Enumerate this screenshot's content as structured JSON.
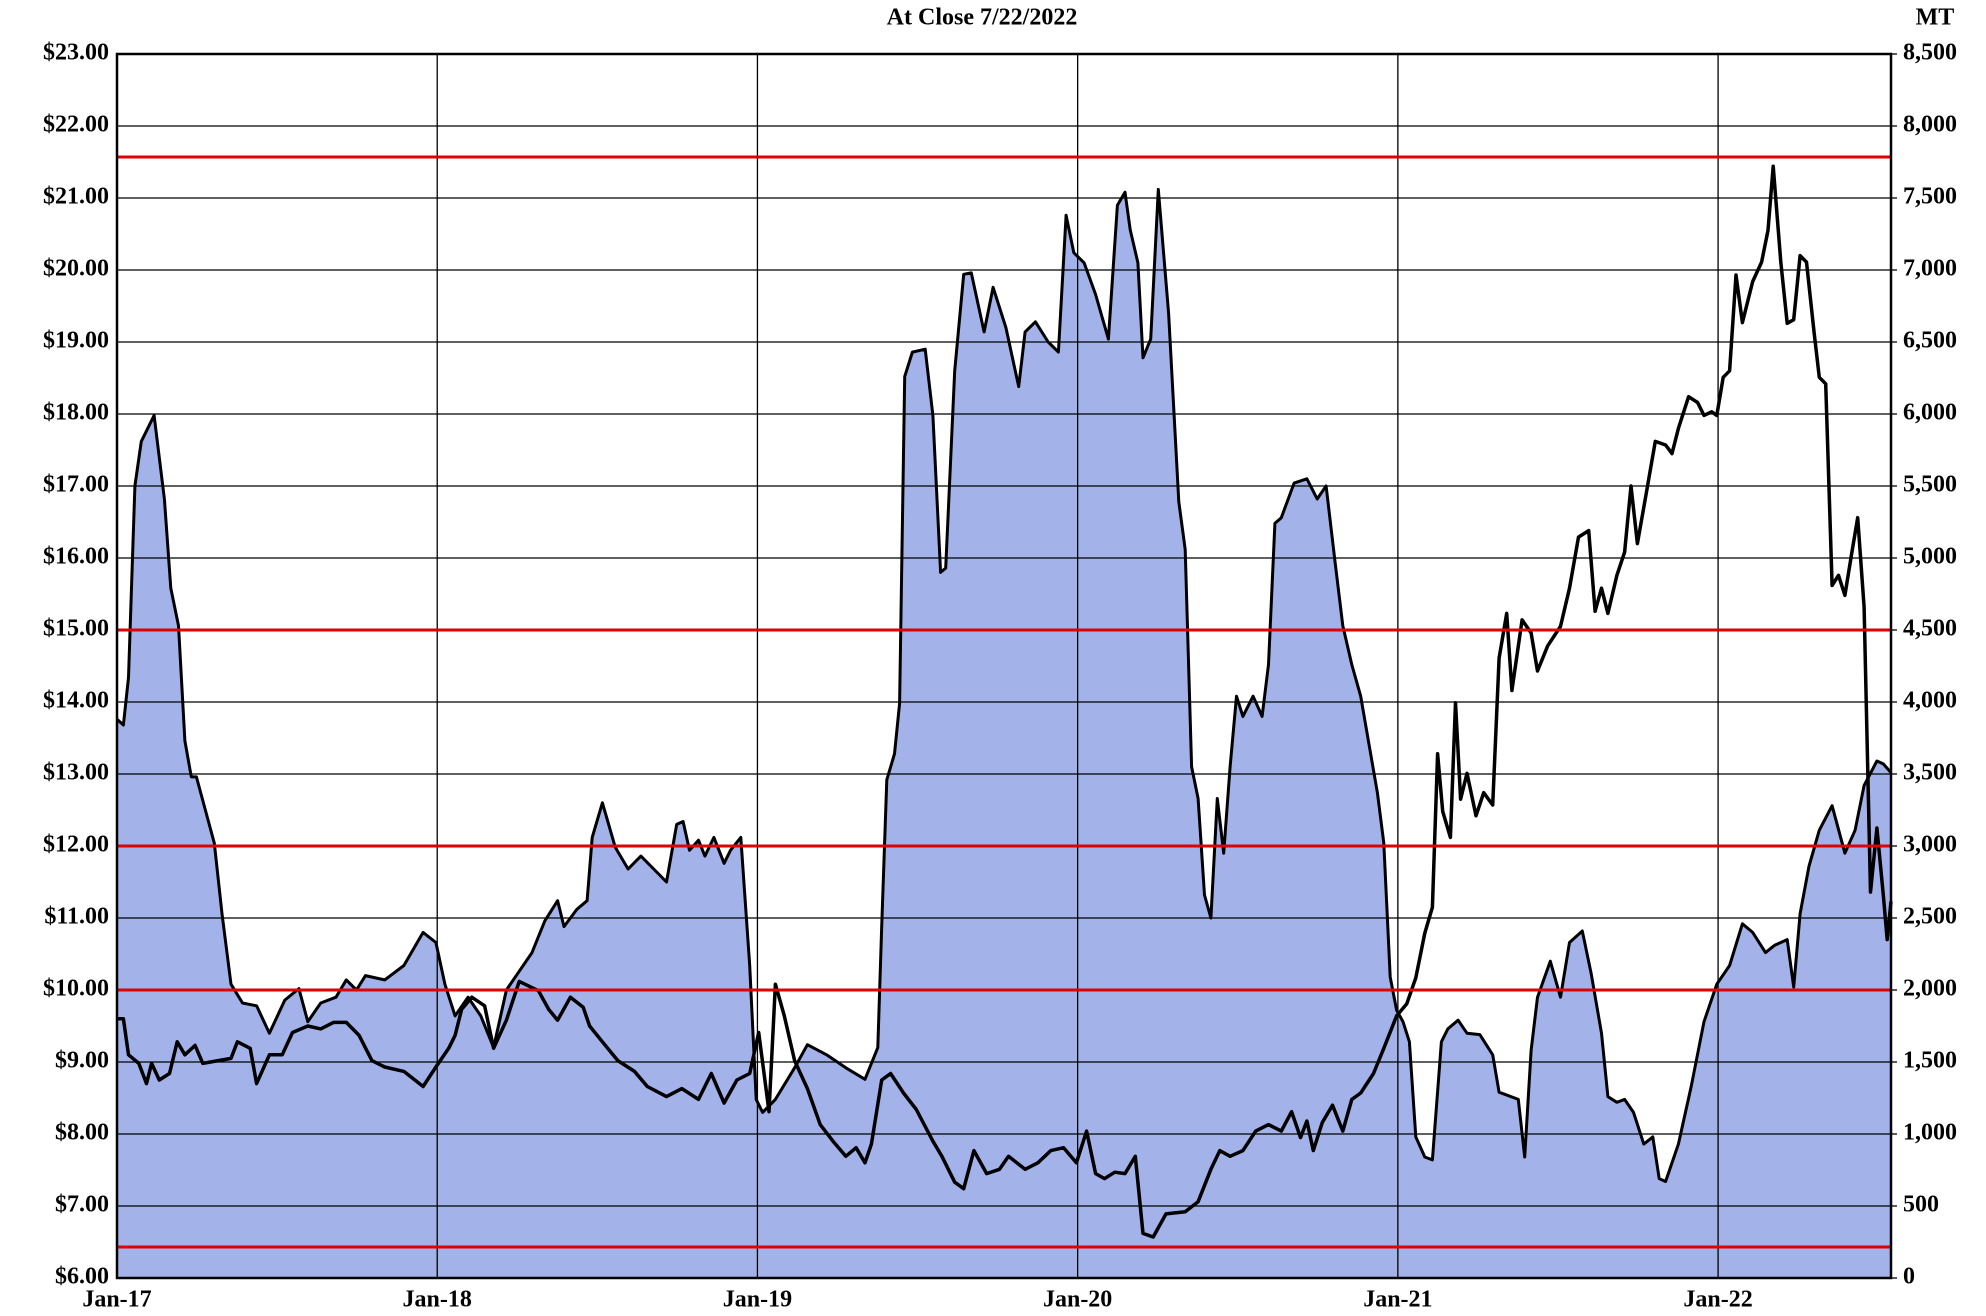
{
  "chart_data": {
    "type": "line",
    "title": "At Close 7/22/2022",
    "y2_label": "MT",
    "xlim": [
      2017,
      2022.54
    ],
    "xticks": [
      {
        "value": 2017,
        "label": "Jan-17"
      },
      {
        "value": 2018,
        "label": "Jan-18"
      },
      {
        "value": 2019,
        "label": "Jan-19"
      },
      {
        "value": 2020,
        "label": "Jan-20"
      },
      {
        "value": 2021,
        "label": "Jan-21"
      },
      {
        "value": 2022,
        "label": "Jan-22"
      }
    ],
    "ylim": [
      6,
      23
    ],
    "yticks": [
      {
        "value": 6,
        "label": "$6.00"
      },
      {
        "value": 7,
        "label": "$7.00"
      },
      {
        "value": 8,
        "label": "$8.00"
      },
      {
        "value": 9,
        "label": "$9.00"
      },
      {
        "value": 10,
        "label": "$10.00"
      },
      {
        "value": 11,
        "label": "$11.00"
      },
      {
        "value": 12,
        "label": "$12.00"
      },
      {
        "value": 13,
        "label": "$13.00"
      },
      {
        "value": 14,
        "label": "$14.00"
      },
      {
        "value": 15,
        "label": "$15.00"
      },
      {
        "value": 16,
        "label": "$16.00"
      },
      {
        "value": 17,
        "label": "$17.00"
      },
      {
        "value": 18,
        "label": "$18.00"
      },
      {
        "value": 19,
        "label": "$19.00"
      },
      {
        "value": 20,
        "label": "$20.00"
      },
      {
        "value": 21,
        "label": "$21.00"
      },
      {
        "value": 22,
        "label": "$22.00"
      },
      {
        "value": 23,
        "label": "$23.00"
      }
    ],
    "y2lim": [
      0,
      8500
    ],
    "y2ticks": [
      0,
      500,
      {
        "value": 1000,
        "label": "1,000"
      },
      {
        "value": 1500,
        "label": "1,500"
      },
      {
        "value": 2000,
        "label": "2,000"
      },
      {
        "value": 2500,
        "label": "2,500"
      },
      {
        "value": 3000,
        "label": "3,000"
      },
      {
        "value": 3500,
        "label": "3,500"
      },
      {
        "value": 4000,
        "label": "4,000"
      },
      {
        "value": 4500,
        "label": "4,500"
      },
      {
        "value": 5000,
        "label": "5,000"
      },
      {
        "value": 5500,
        "label": "5,500"
      },
      {
        "value": 6000,
        "label": "6,000"
      },
      {
        "value": 6500,
        "label": "6,500"
      },
      {
        "value": 7000,
        "label": "7,000"
      },
      {
        "value": 7500,
        "label": "7,500"
      },
      {
        "value": 8000,
        "label": "8,000"
      },
      {
        "value": 8500,
        "label": "8,500"
      }
    ],
    "grid": true,
    "reference_lines": {
      "color": "#e00000",
      "values": [
        21.57,
        15,
        12,
        10,
        6.43
      ]
    },
    "series": [
      {
        "type": "area",
        "axis": "y2",
        "color": "#a3b3ea",
        "x": [
          2017,
          2017.02,
          2017.036,
          2017.056,
          2017.076,
          2017.116,
          2017.148,
          2017.168,
          2017.192,
          2017.212,
          2017.232,
          2017.248,
          2017.304,
          2017.328,
          2017.356,
          2017.392,
          2017.436,
          2017.476,
          2017.524,
          2017.568,
          2017.596,
          2017.636,
          2017.684,
          2017.716,
          2017.748,
          2017.776,
          2017.836,
          2017.896,
          2017.956,
          2017.996,
          2018.024,
          2018.056,
          2018.096,
          2018.136,
          2018.176,
          2018.216,
          2018.256,
          2018.296,
          2018.336,
          2018.376,
          2018.396,
          2018.436,
          2018.468,
          2018.484,
          2018.516,
          2018.556,
          2018.596,
          2018.636,
          2018.676,
          2018.716,
          2018.748,
          2018.768,
          2018.788,
          2018.816,
          2018.836,
          2018.864,
          2018.896,
          2018.916,
          2018.948,
          2018.976,
          2018.996,
          2019.016,
          2019.056,
          2019.116,
          2019.156,
          2019.216,
          2019.276,
          2019.336,
          2019.376,
          2019.388,
          2019.404,
          2019.428,
          2019.444,
          2019.46,
          2019.484,
          2019.524,
          2019.548,
          2019.572,
          2019.588,
          2019.616,
          2019.644,
          2019.668,
          2019.708,
          2019.736,
          2019.776,
          2019.816,
          2019.836,
          2019.868,
          2019.908,
          2019.94,
          2019.964,
          2019.988,
          2020.02,
          2020.056,
          2020.096,
          2020.124,
          2020.148,
          2020.164,
          2020.188,
          2020.204,
          2020.228,
          2020.252,
          2020.284,
          2020.316,
          2020.336,
          2020.356,
          2020.376,
          2020.396,
          2020.416,
          2020.436,
          2020.456,
          2020.476,
          2020.496,
          2020.516,
          2020.548,
          2020.576,
          2020.596,
          2020.616,
          2020.636,
          2020.676,
          2020.716,
          2020.748,
          2020.776,
          2020.804,
          2020.828,
          2020.856,
          2020.884,
          2020.908,
          2020.936,
          2020.956,
          2020.976,
          2020.996,
          2021.016,
          2021.036,
          2021.056,
          2021.084,
          2021.108,
          2021.136,
          2021.156,
          2021.188,
          2021.216,
          2021.256,
          2021.296,
          2021.316,
          2021.376,
          2021.396,
          2021.416,
          2021.436,
          2021.476,
          2021.508,
          2021.536,
          2021.576,
          2021.604,
          2021.636,
          2021.656,
          2021.684,
          2021.708,
          2021.736,
          2021.768,
          2021.796,
          2021.816,
          2021.836,
          2021.876,
          2021.916,
          2021.956,
          2021.996,
          2022.036,
          2022.076,
          2022.108,
          2022.148,
          2022.176,
          2022.216,
          2022.236,
          2022.256,
          2022.284,
          2022.316,
          2022.356,
          2022.396,
          2022.428,
          2022.456,
          2022.496,
          2022.516,
          2022.54
        ],
        "values": [
          3880,
          3840,
          4170,
          5500,
          5810,
          5990,
          5410,
          4790,
          4530,
          3730,
          3480,
          3480,
          3020,
          2530,
          2040,
          1910,
          1890,
          1700,
          1930,
          2010,
          1780,
          1910,
          1950,
          2070,
          2000,
          2100,
          2070,
          2170,
          2400,
          2330,
          2040,
          1820,
          1950,
          1820,
          1600,
          2000,
          2130,
          2260,
          2480,
          2620,
          2440,
          2560,
          2620,
          3060,
          3300,
          2990,
          2840,
          2930,
          2840,
          2750,
          3150,
          3170,
          2970,
          3040,
          2930,
          3060,
          2880,
          2970,
          3060,
          2170,
          1240,
          1150,
          1240,
          1460,
          1620,
          1550,
          1460,
          1380,
          1600,
          2440,
          3460,
          3640,
          3990,
          6260,
          6430,
          6450,
          5990,
          4900,
          4930,
          6300,
          6970,
          6980,
          6570,
          6880,
          6600,
          6190,
          6570,
          6640,
          6500,
          6430,
          7380,
          7120,
          7050,
          6830,
          6520,
          7450,
          7540,
          7280,
          7050,
          6390,
          6520,
          7560,
          6700,
          5390,
          5060,
          3550,
          3330,
          2660,
          2500,
          3330,
          2950,
          3550,
          4040,
          3900,
          4040,
          3900,
          4260,
          5240,
          5280,
          5520,
          5550,
          5410,
          5500,
          4970,
          4530,
          4260,
          4040,
          3730,
          3370,
          3020,
          2090,
          1860,
          1780,
          1640,
          980,
          840,
          820,
          1640,
          1730,
          1790,
          1700,
          1690,
          1550,
          1290,
          1240,
          840,
          1580,
          1950,
          2200,
          1950,
          2330,
          2410,
          2110,
          1700,
          1260,
          1220,
          1240,
          1150,
          930,
          980,
          690,
          670,
          930,
          1330,
          1780,
          2040,
          2170,
          2460,
          2400,
          2260,
          2310,
          2350,
          2020,
          2530,
          2860,
          3110,
          3280,
          2950,
          3110,
          3420,
          3590,
          3570,
          3510
        ]
      },
      {
        "type": "line",
        "axis": "y",
        "color": "#000000",
        "x": [
          2017,
          2017.02,
          2017.036,
          2017.068,
          2017.092,
          2017.108,
          2017.132,
          2017.164,
          2017.188,
          2017.212,
          2017.244,
          2017.268,
          2017.316,
          2017.356,
          2017.376,
          2017.416,
          2017.436,
          2017.476,
          2017.516,
          2017.548,
          2017.596,
          2017.636,
          2017.676,
          2017.716,
          2017.756,
          2017.796,
          2017.836,
          2017.896,
          2017.956,
          2017.996,
          2018.036,
          2018.056,
          2018.076,
          2018.108,
          2018.148,
          2018.176,
          2018.216,
          2018.256,
          2018.316,
          2018.348,
          2018.376,
          2018.416,
          2018.456,
          2018.476,
          2018.516,
          2018.564,
          2018.616,
          2018.656,
          2018.716,
          2018.764,
          2018.816,
          2018.856,
          2018.896,
          2018.936,
          2018.976,
          2019.004,
          2019.036,
          2019.056,
          2019.084,
          2019.116,
          2019.156,
          2019.196,
          2019.236,
          2019.276,
          2019.308,
          2019.336,
          2019.356,
          2019.388,
          2019.416,
          2019.456,
          2019.496,
          2019.548,
          2019.576,
          2019.616,
          2019.644,
          2019.676,
          2019.716,
          2019.756,
          2019.784,
          2019.836,
          2019.876,
          2019.916,
          2019.956,
          2019.996,
          2020.028,
          2020.056,
          2020.084,
          2020.116,
          2020.148,
          2020.18,
          2020.204,
          2020.236,
          2020.276,
          2020.336,
          2020.376,
          2020.416,
          2020.444,
          2020.476,
          2020.516,
          2020.556,
          2020.596,
          2020.636,
          2020.668,
          2020.696,
          2020.716,
          2020.736,
          2020.764,
          2020.796,
          2020.828,
          2020.856,
          2020.884,
          2020.924,
          2020.956,
          2020.996,
          2021.028,
          2021.056,
          2021.084,
          2021.108,
          2021.124,
          2021.14,
          2021.164,
          2021.18,
          2021.196,
          2021.216,
          2021.244,
          2021.268,
          2021.296,
          2021.316,
          2021.34,
          2021.356,
          2021.388,
          2021.416,
          2021.436,
          2021.468,
          2021.508,
          2021.536,
          2021.564,
          2021.596,
          2021.616,
          2021.636,
          2021.656,
          2021.684,
          2021.708,
          2021.728,
          2021.748,
          2021.776,
          2021.804,
          2021.836,
          2021.856,
          2021.876,
          2021.908,
          2021.936,
          2021.956,
          2021.98,
          2021.996,
          2022.016,
          2022.036,
          2022.056,
          2022.076,
          2022.108,
          2022.136,
          2022.156,
          2022.172,
          2022.196,
          2022.216,
          2022.236,
          2022.256,
          2022.276,
          2022.3,
          2022.316,
          2022.336,
          2022.356,
          2022.376,
          2022.396,
          2022.416,
          2022.436,
          2022.456,
          2022.476,
          2022.496,
          2022.516,
          2022.528,
          2022.54
        ],
        "values": [
          9.6,
          9.6,
          9.1,
          8.98,
          8.7,
          8.98,
          8.75,
          8.84,
          9.28,
          9.1,
          9.23,
          8.98,
          9.02,
          9.05,
          9.28,
          9.19,
          8.7,
          9.1,
          9.1,
          9.41,
          9.5,
          9.46,
          9.55,
          9.55,
          9.37,
          9.02,
          8.93,
          8.87,
          8.66,
          8.93,
          9.19,
          9.37,
          9.73,
          9.9,
          9.78,
          9.19,
          9.58,
          10.12,
          9.99,
          9.73,
          9.58,
          9.9,
          9.76,
          9.5,
          9.28,
          9.02,
          8.87,
          8.66,
          8.52,
          8.63,
          8.48,
          8.84,
          8.43,
          8.75,
          8.84,
          9.41,
          8.31,
          10.08,
          9.64,
          9.02,
          8.63,
          8.13,
          7.9,
          7.69,
          7.81,
          7.6,
          7.86,
          8.75,
          8.84,
          8.57,
          8.34,
          7.9,
          7.69,
          7.33,
          7.24,
          7.77,
          7.45,
          7.51,
          7.69,
          7.51,
          7.6,
          7.77,
          7.81,
          7.6,
          8.04,
          7.45,
          7.38,
          7.47,
          7.45,
          7.69,
          6.62,
          6.57,
          6.89,
          6.92,
          7.06,
          7.51,
          7.77,
          7.69,
          7.77,
          8.04,
          8.13,
          8.04,
          8.31,
          7.95,
          8.18,
          7.77,
          8.16,
          8.4,
          8.04,
          8.48,
          8.57,
          8.84,
          9.19,
          9.64,
          9.81,
          10.17,
          10.79,
          11.15,
          13.28,
          12.48,
          12.12,
          13.99,
          12.65,
          13.01,
          12.42,
          12.74,
          12.57,
          14.61,
          15.23,
          14.16,
          15.14,
          14.96,
          14.43,
          14.78,
          15.05,
          15.58,
          16.29,
          16.38,
          15.26,
          15.58,
          15.23,
          15.76,
          16.08,
          17.0,
          16.2,
          16.91,
          17.62,
          17.57,
          17.45,
          17.8,
          18.24,
          18.16,
          17.98,
          18.03,
          17.98,
          18.51,
          18.6,
          19.93,
          19.27,
          19.84,
          20.11,
          20.55,
          21.44,
          20.11,
          19.26,
          19.31,
          20.2,
          20.11,
          19.13,
          18.51,
          18.42,
          15.62,
          15.76,
          15.48,
          16.03,
          16.56,
          15.32,
          11.36,
          12.25,
          11.32,
          10.7,
          11.23
        ]
      }
    ]
  }
}
